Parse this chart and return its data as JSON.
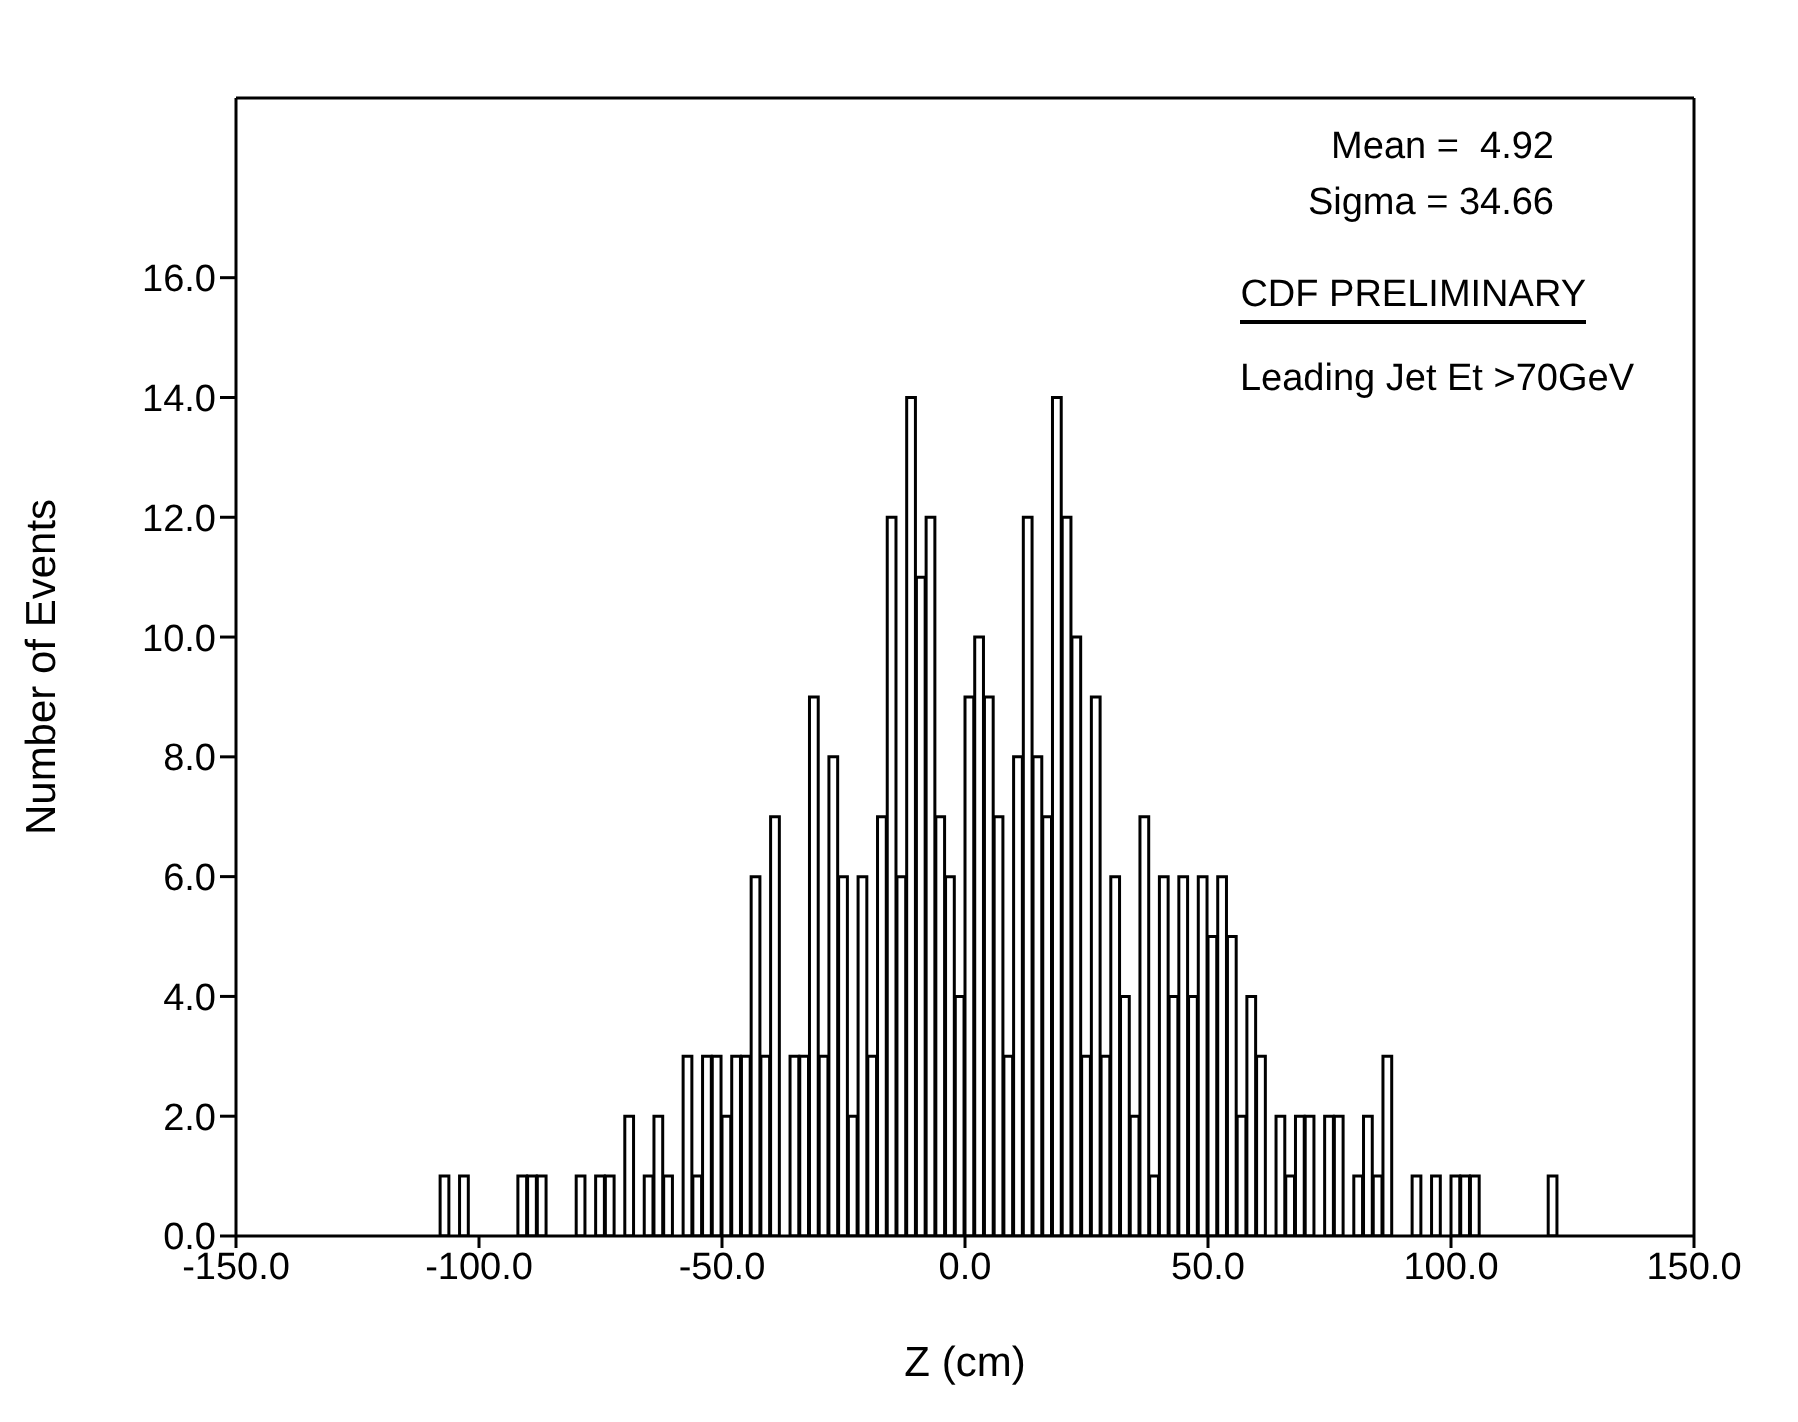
{
  "chart_data": {
    "type": "histogram",
    "xlabel": "Z (cm)",
    "ylabel": "Number of Events",
    "annotations": [
      "Mean =  4.92",
      "Sigma = 34.66",
      "CDF PRELIMINARY",
      "Leading Jet Et >70GeV"
    ],
    "color": "#000000",
    "bins": [
      -110,
      -108,
      -106,
      -104,
      -102,
      -100,
      -98,
      -96,
      -94,
      -92,
      -90,
      -88,
      -86,
      -84,
      -82,
      -80,
      -78,
      -76,
      -74,
      -72,
      -70,
      -68,
      -66,
      -64,
      -62,
      -60,
      -58,
      -56,
      -54,
      -52,
      -50,
      -48,
      -46,
      -44,
      -42,
      -40,
      -38,
      -36,
      -34,
      -32,
      -30,
      -28,
      -26,
      -24,
      -22,
      -20,
      -18,
      -16,
      -14,
      -12,
      -10,
      -8,
      -6,
      -4,
      -2,
      0,
      2,
      4,
      6,
      8,
      10,
      12,
      14,
      16,
      18,
      20,
      22,
      24,
      26,
      28,
      30,
      32,
      34,
      36,
      38,
      40,
      42,
      44,
      46,
      48,
      50,
      52,
      54,
      56,
      58,
      60,
      62,
      64,
      66,
      68,
      70,
      72,
      74,
      76,
      78,
      80,
      82,
      84,
      86,
      88,
      90,
      92,
      94,
      96,
      98,
      100,
      102,
      104,
      106,
      108,
      110,
      112,
      114,
      116,
      118,
      120,
      122
    ],
    "values": [
      0,
      1,
      0,
      1,
      0,
      0,
      0,
      0,
      0,
      1,
      1,
      1,
      0,
      0,
      0,
      1,
      0,
      1,
      1,
      0,
      2,
      0,
      1,
      2,
      1,
      0,
      3,
      1,
      3,
      3,
      2,
      3,
      3,
      6,
      3,
      7,
      0,
      3,
      3,
      9,
      3,
      8,
      6,
      2,
      6,
      3,
      7,
      12,
      6,
      14,
      11,
      12,
      7,
      6,
      4,
      9,
      10,
      9,
      7,
      3,
      8,
      12,
      8,
      7,
      14,
      12,
      10,
      3,
      9,
      3,
      6,
      4,
      2,
      7,
      1,
      6,
      4,
      6,
      4,
      6,
      5,
      6,
      5,
      2,
      4,
      3,
      0,
      2,
      1,
      2,
      2,
      0,
      2,
      2,
      0,
      1,
      2,
      1,
      3,
      0,
      0,
      1,
      0,
      1,
      0,
      1,
      1,
      1,
      0,
      0,
      0,
      0,
      0,
      0,
      0,
      1
    ],
    "xlim": [
      -150,
      150
    ],
    "xticks": [
      {
        "value": -150,
        "label": "-150.0"
      },
      {
        "value": -100,
        "label": "-100.0"
      },
      {
        "value": -50,
        "label": "-50.0"
      },
      {
        "value": 0,
        "label": "0.0"
      },
      {
        "value": 50,
        "label": "50.0"
      },
      {
        "value": 100,
        "label": "100.0"
      },
      {
        "value": 150,
        "label": "150.0"
      }
    ],
    "ylim": [
      0,
      19
    ],
    "yticks": [
      {
        "value": 0,
        "label": "0.0"
      },
      {
        "value": 2,
        "label": "2.0"
      },
      {
        "value": 4,
        "label": "4.0"
      },
      {
        "value": 6,
        "label": "6.0"
      },
      {
        "value": 8,
        "label": "8.0"
      },
      {
        "value": 10,
        "label": "10.0"
      },
      {
        "value": 12,
        "label": "12.0"
      },
      {
        "value": 14,
        "label": "14.0"
      },
      {
        "value": 16,
        "label": "16.0"
      }
    ],
    "grid": false,
    "legend": false
  }
}
